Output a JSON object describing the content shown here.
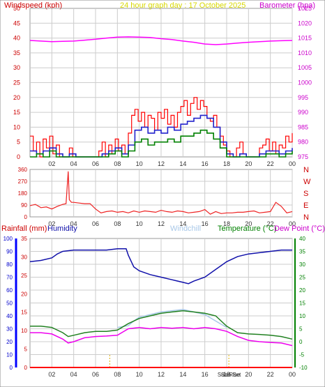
{
  "header": {
    "windspeed_label": "Windspeed (kph)",
    "graph_title": "24 hour graph day : 17 October 2025",
    "barometer_label": "Barometer (hpa)"
  },
  "lower_header": {
    "rainfall_label": "Rainfall (mm)",
    "humidity_label": "Humidity",
    "windchill_label": "Windchill",
    "temperature_label": "Temperature (°C)",
    "dewpoint_label": "Dew Point (°C)"
  },
  "sun_labels": {
    "sunrise": "Sun Rise",
    "sunset": "Sun Set"
  },
  "colors": {
    "windspeed": "#ff0000",
    "windavg": "#2222cc",
    "windlow": "#008000",
    "barometer": "#ff00ff",
    "direction": "#ee2222",
    "humidity": "#1010aa",
    "windchill": "#a8c8e8",
    "temperature": "#208020",
    "dewpoint": "#ee00ee",
    "rain": "#ff0000",
    "sun_marker": "#e0b000",
    "axis_left": "#cc0000",
    "axis_right": "#cc00cc",
    "axis_left_lower": "#0000cc",
    "axis_right_lower": "#008000",
    "grid": "#cccccc"
  },
  "chart_data": [
    {
      "type": "line",
      "name": "wind-barometer",
      "x_ticks": [
        "02",
        "04",
        "06",
        "08",
        "10",
        "12",
        "14",
        "16",
        "18",
        "20",
        "22",
        "00"
      ],
      "y_left_ticks": [
        0,
        5,
        10,
        15,
        20,
        25,
        30,
        35,
        40,
        45,
        50
      ],
      "y_right_ticks": [
        975,
        980,
        985,
        990,
        995,
        1000,
        1005,
        1010,
        1015,
        1020,
        1025
      ],
      "ylim_left": [
        0,
        50
      ],
      "ylim_right": [
        975,
        1025
      ],
      "xlim": [
        0,
        24
      ],
      "grid": true,
      "series": [
        {
          "key": "barometer",
          "axis": "right",
          "x": [
            0,
            1,
            2,
            3,
            4,
            5,
            6,
            7,
            8,
            9,
            10,
            11,
            12,
            13,
            14,
            15,
            16,
            17,
            18,
            19,
            20,
            21,
            22,
            23,
            24
          ],
          "values": [
            1014.2,
            1014.0,
            1013.8,
            1013.9,
            1014.0,
            1014.3,
            1014.6,
            1015.0,
            1015.3,
            1015.4,
            1015.3,
            1015.2,
            1014.8,
            1014.5,
            1014.0,
            1013.6,
            1013.0,
            1012.8,
            1013.0,
            1013.3,
            1013.6,
            1013.8,
            1014.0,
            1014.1,
            1014.2
          ]
        },
        {
          "key": "windspeed",
          "axis": "left",
          "x": [
            0,
            0.3,
            0.6,
            0.9,
            1.2,
            1.5,
            1.8,
            2.1,
            2.4,
            2.7,
            3.0,
            3.3,
            3.6,
            3.9,
            4.2,
            4.5,
            4.8,
            5.1,
            5.4,
            5.7,
            6.0,
            6.3,
            6.6,
            6.9,
            7.2,
            7.5,
            7.8,
            8.1,
            8.4,
            8.7,
            9.0,
            9.3,
            9.6,
            9.9,
            10.2,
            10.5,
            10.8,
            11.1,
            11.4,
            11.7,
            12.0,
            12.3,
            12.6,
            12.9,
            13.2,
            13.5,
            13.8,
            14.1,
            14.4,
            14.7,
            15.0,
            15.3,
            15.6,
            15.9,
            16.2,
            16.5,
            16.8,
            17.1,
            17.4,
            17.7,
            18.0,
            18.3,
            18.6,
            18.9,
            19.2,
            19.5,
            19.8,
            20.1,
            20.4,
            20.7,
            21.0,
            21.3,
            21.6,
            21.9,
            22.2,
            22.5,
            22.8,
            23.1,
            23.4,
            23.7,
            24.0
          ],
          "values": [
            7,
            2,
            5,
            0,
            6,
            3,
            7,
            1,
            4,
            0,
            0,
            0,
            3,
            0,
            0,
            0,
            0,
            0,
            0,
            0,
            0,
            2,
            5,
            0,
            4,
            1,
            6,
            2,
            4,
            1,
            8,
            14,
            16,
            12,
            15,
            10,
            14,
            13,
            9,
            15,
            13,
            16,
            11,
            14,
            10,
            15,
            17,
            19,
            14,
            18,
            20,
            16,
            19,
            17,
            13,
            12,
            14,
            10,
            7,
            4,
            2,
            0,
            0,
            3,
            5,
            1,
            0,
            0,
            0,
            0,
            3,
            4,
            6,
            2,
            5,
            1,
            4,
            3,
            7,
            5,
            8
          ]
        },
        {
          "key": "windavg",
          "axis": "left",
          "x": [
            0,
            0.6,
            1.2,
            1.8,
            2.4,
            3.0,
            3.6,
            4.2,
            4.8,
            5.4,
            6.0,
            6.6,
            7.2,
            7.8,
            8.4,
            9.0,
            9.6,
            10.2,
            10.8,
            11.4,
            12.0,
            12.6,
            13.2,
            13.8,
            14.4,
            15.0,
            15.6,
            16.2,
            16.8,
            17.4,
            18.0,
            18.6,
            19.2,
            19.8,
            20.4,
            21.0,
            21.6,
            22.2,
            22.8,
            23.4,
            24.0
          ],
          "values": [
            2,
            1,
            2,
            3,
            1,
            0,
            1,
            0,
            0,
            0,
            0,
            1,
            2,
            3,
            1,
            4,
            9,
            10,
            8,
            9,
            8,
            10,
            9,
            11,
            12,
            13,
            14,
            13,
            10,
            5,
            1,
            0,
            1,
            0,
            0,
            1,
            2,
            2,
            1,
            2,
            3
          ]
        },
        {
          "key": "windlow",
          "axis": "left",
          "x": [
            0,
            0.6,
            1.2,
            1.8,
            2.4,
            3.0,
            3.6,
            4.2,
            4.8,
            5.4,
            6.0,
            6.6,
            7.2,
            7.8,
            8.4,
            9.0,
            9.6,
            10.2,
            10.8,
            11.4,
            12.0,
            12.6,
            13.2,
            13.8,
            14.4,
            15.0,
            15.6,
            16.2,
            16.8,
            17.4,
            18.0,
            18.6,
            19.2,
            19.8,
            20.4,
            21.0,
            21.6,
            22.2,
            22.8,
            23.4,
            24.0
          ],
          "values": [
            0,
            1,
            0,
            2,
            0,
            0,
            0,
            0,
            0,
            0,
            0,
            0,
            1,
            2,
            0,
            2,
            5,
            6,
            4,
            5,
            5,
            6,
            5,
            7,
            7,
            8,
            9,
            8,
            6,
            3,
            0,
            0,
            0,
            0,
            0,
            0,
            1,
            1,
            0,
            1,
            2
          ]
        }
      ]
    },
    {
      "type": "line",
      "name": "wind-direction",
      "x_ticks": [
        "02",
        "04",
        "06",
        "08",
        "10",
        "12",
        "14",
        "16",
        "18",
        "20",
        "22",
        "00"
      ],
      "y_left_ticks": [
        0,
        90,
        180,
        270,
        360
      ],
      "y_right_ticks": [
        "N",
        "E",
        "S",
        "W",
        "N"
      ],
      "ylim": [
        0,
        360
      ],
      "xlim": [
        0,
        24
      ],
      "grid": true,
      "series": [
        {
          "key": "direction",
          "x": [
            0,
            0.5,
            1,
            1.5,
            2,
            2.5,
            3,
            3.3,
            3.5,
            3.6,
            3.8,
            4,
            4.5,
            5,
            5.5,
            6,
            6.5,
            7,
            7.5,
            8,
            8.5,
            9,
            9.5,
            10,
            10.5,
            11,
            11.5,
            12,
            12.5,
            13,
            13.5,
            14,
            14.5,
            15,
            15.5,
            16,
            16.5,
            17,
            17.5,
            18,
            18.5,
            19,
            19.5,
            20,
            20.5,
            21,
            21.5,
            22,
            22.5,
            23,
            23.5,
            24
          ],
          "values": [
            85,
            95,
            70,
            75,
            60,
            80,
            95,
            100,
            345,
            130,
            110,
            110,
            105,
            100,
            100,
            60,
            30,
            40,
            45,
            35,
            40,
            30,
            45,
            35,
            45,
            40,
            35,
            50,
            40,
            35,
            45,
            40,
            30,
            35,
            40,
            55,
            20,
            40,
            25,
            30,
            30,
            35,
            35,
            40,
            45,
            30,
            35,
            40,
            110,
            80,
            30,
            40
          ]
        }
      ]
    },
    {
      "type": "line",
      "name": "temperature-humidity",
      "x_ticks": [
        "02",
        "04",
        "06",
        "08",
        "10",
        "12",
        "14",
        "16",
        "18",
        "20",
        "22",
        "00"
      ],
      "y_humidity_ticks": [
        0,
        10,
        20,
        30,
        40,
        50,
        60,
        70,
        80,
        90,
        100
      ],
      "y_rain_ticks": [
        0,
        5,
        10,
        15,
        20,
        25,
        30,
        35
      ],
      "y_temp_ticks": [
        -10,
        -5,
        0,
        5,
        10,
        15,
        20,
        25,
        30,
        35,
        40
      ],
      "ylim_humidity": [
        0,
        100
      ],
      "ylim_rain": [
        0,
        35
      ],
      "ylim_temp": [
        -10,
        40
      ],
      "xlim": [
        0,
        24
      ],
      "grid": true,
      "series": [
        {
          "key": "humidity",
          "axis": "humidity",
          "x": [
            0,
            1,
            2,
            2.5,
            3,
            4,
            5,
            6,
            7,
            8,
            8.8,
            9,
            9.5,
            10,
            11,
            12,
            13,
            14,
            14.5,
            15,
            16,
            17,
            18,
            19,
            20,
            21,
            22,
            23,
            24
          ],
          "values": [
            82,
            83,
            85,
            88,
            90,
            91,
            91,
            91,
            91,
            92,
            92,
            87,
            78,
            75,
            72,
            70,
            68,
            66,
            65,
            67,
            70,
            76,
            82,
            86,
            88,
            89,
            90,
            91,
            91
          ]
        },
        {
          "key": "windchill",
          "axis": "temp",
          "x": [
            8,
            9,
            9.5,
            10,
            11,
            12,
            13,
            14,
            15,
            16,
            17,
            18
          ],
          "values": [
            5.5,
            6.2,
            8.0,
            9.5,
            10.5,
            11.5,
            12.0,
            12.5,
            11.5,
            10.5,
            8.0,
            5.5
          ]
        },
        {
          "key": "temperature",
          "axis": "temp",
          "x": [
            0,
            1,
            2,
            3,
            3.5,
            4,
            5,
            6,
            7,
            8,
            9,
            10,
            11,
            12,
            13,
            14,
            15,
            16,
            17,
            18,
            19,
            20,
            21,
            22,
            23,
            24
          ],
          "values": [
            6.0,
            6.0,
            5.5,
            3.5,
            2.0,
            2.5,
            3.5,
            4.0,
            4.0,
            4.5,
            7.0,
            9.0,
            10.0,
            11.0,
            11.5,
            12.0,
            11.5,
            11.0,
            10.0,
            6.0,
            3.5,
            3.0,
            2.8,
            2.5,
            2.0,
            1.0
          ]
        },
        {
          "key": "dewpoint",
          "axis": "temp",
          "x": [
            0,
            1,
            2,
            3,
            3.5,
            4,
            5,
            6,
            7,
            8,
            9,
            10,
            11,
            12,
            13,
            14,
            15,
            16,
            17,
            18,
            19,
            20,
            21,
            22,
            23,
            24
          ],
          "values": [
            3.5,
            3.5,
            3.0,
            1.0,
            -0.5,
            0.0,
            1.5,
            2.0,
            2.2,
            2.5,
            5.0,
            5.5,
            5.0,
            5.5,
            5.2,
            5.5,
            5.0,
            5.5,
            5.0,
            4.0,
            2.0,
            0.5,
            0.0,
            -0.3,
            -0.5,
            -1.5
          ]
        },
        {
          "key": "rain",
          "axis": "rain",
          "x": [
            0,
            24
          ],
          "values": [
            0,
            0
          ]
        }
      ],
      "sun_markers": [
        {
          "key": "sunrise",
          "x": 7.3
        },
        {
          "key": "sunset",
          "x": 18.2
        }
      ]
    }
  ]
}
